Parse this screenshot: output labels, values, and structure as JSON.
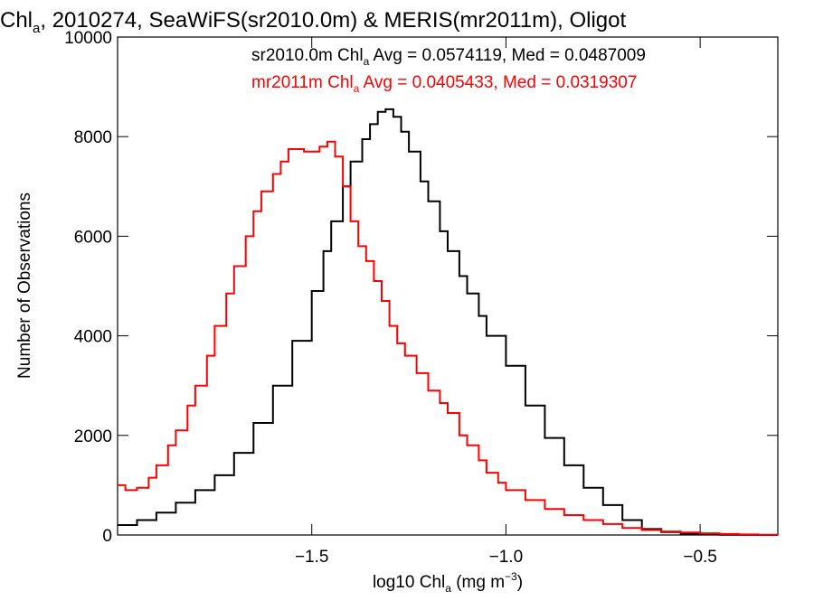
{
  "chart_data": {
    "type": "line",
    "title": "Chl",
    "title_sub": "a",
    "title_rest": ", 2010274, SeaWiFS(sr2010.0m) & MERIS(mr2011m), Oligot",
    "xlabel_pre": "log10 Chl",
    "xlabel_sub": "a",
    "xlabel_mid": " (mg m",
    "xlabel_sup": "−3",
    "xlabel_post": ")",
    "ylabel": "Number of Observations",
    "xlim": [
      -2.0,
      -0.3
    ],
    "ylim": [
      0,
      10000
    ],
    "x_ticks": [
      {
        "value": -1.5,
        "label": "−1.5"
      },
      {
        "value": -1.0,
        "label": "−1.0"
      },
      {
        "value": -0.5,
        "label": "−0.5"
      }
    ],
    "y_ticks": [
      {
        "value": 0,
        "label": "0"
      },
      {
        "value": 2000,
        "label": "2000"
      },
      {
        "value": 4000,
        "label": "4000"
      },
      {
        "value": 6000,
        "label": "6000"
      },
      {
        "value": 8000,
        "label": "8000"
      },
      {
        "value": 10000,
        "label": "10000"
      }
    ],
    "grid": false,
    "legend_position": "top-right",
    "series": [
      {
        "name": "sr2010.0m",
        "color": "#000000",
        "annotation": {
          "pre": "sr2010.0m Chl",
          "sub": "a",
          "post": " Avg = 0.0574119, Med = 0.0487009"
        },
        "points": [
          [
            -2.0,
            200
          ],
          [
            -1.95,
            300
          ],
          [
            -1.9,
            450
          ],
          [
            -1.85,
            650
          ],
          [
            -1.8,
            900
          ],
          [
            -1.75,
            1200
          ],
          [
            -1.7,
            1650
          ],
          [
            -1.65,
            2250
          ],
          [
            -1.6,
            3000
          ],
          [
            -1.55,
            3900
          ],
          [
            -1.5,
            4900
          ],
          [
            -1.47,
            5700
          ],
          [
            -1.45,
            6300
          ],
          [
            -1.42,
            7000
          ],
          [
            -1.4,
            7500
          ],
          [
            -1.37,
            7950
          ],
          [
            -1.35,
            8250
          ],
          [
            -1.33,
            8500
          ],
          [
            -1.31,
            8550
          ],
          [
            -1.29,
            8400
          ],
          [
            -1.27,
            8100
          ],
          [
            -1.25,
            7700
          ],
          [
            -1.22,
            7100
          ],
          [
            -1.2,
            6700
          ],
          [
            -1.17,
            6100
          ],
          [
            -1.15,
            5700
          ],
          [
            -1.12,
            5200
          ],
          [
            -1.1,
            4850
          ],
          [
            -1.07,
            4400
          ],
          [
            -1.05,
            4000
          ],
          [
            -1.0,
            3400
          ],
          [
            -0.95,
            2600
          ],
          [
            -0.9,
            1950
          ],
          [
            -0.85,
            1400
          ],
          [
            -0.8,
            950
          ],
          [
            -0.75,
            600
          ],
          [
            -0.7,
            300
          ],
          [
            -0.65,
            120
          ],
          [
            -0.6,
            60
          ],
          [
            -0.55,
            20
          ],
          [
            -0.5,
            10
          ],
          [
            -0.45,
            3
          ],
          [
            -0.4,
            1
          ],
          [
            -0.35,
            0
          ],
          [
            -0.3,
            0
          ]
        ]
      },
      {
        "name": "mr2011m",
        "color": "#ff0000",
        "annotation": {
          "pre": "mr2011m Chl",
          "sub": "a",
          "post": " Avg = 0.0405433, Med = 0.0319307"
        },
        "points": [
          [
            -2.0,
            1000
          ],
          [
            -1.98,
            900
          ],
          [
            -1.95,
            950
          ],
          [
            -1.92,
            1150
          ],
          [
            -1.9,
            1400
          ],
          [
            -1.87,
            1800
          ],
          [
            -1.85,
            2100
          ],
          [
            -1.82,
            2600
          ],
          [
            -1.8,
            3000
          ],
          [
            -1.77,
            3600
          ],
          [
            -1.75,
            4200
          ],
          [
            -1.72,
            4850
          ],
          [
            -1.7,
            5400
          ],
          [
            -1.67,
            6000
          ],
          [
            -1.65,
            6500
          ],
          [
            -1.63,
            6900
          ],
          [
            -1.6,
            7250
          ],
          [
            -1.58,
            7500
          ],
          [
            -1.56,
            7750
          ],
          [
            -1.54,
            7750
          ],
          [
            -1.52,
            7700
          ],
          [
            -1.5,
            7700
          ],
          [
            -1.48,
            7800
          ],
          [
            -1.46,
            7900
          ],
          [
            -1.44,
            7600
          ],
          [
            -1.42,
            7000
          ],
          [
            -1.4,
            6300
          ],
          [
            -1.38,
            5800
          ],
          [
            -1.36,
            5500
          ],
          [
            -1.34,
            5100
          ],
          [
            -1.32,
            4700
          ],
          [
            -1.3,
            4200
          ],
          [
            -1.28,
            3850
          ],
          [
            -1.26,
            3600
          ],
          [
            -1.23,
            3250
          ],
          [
            -1.2,
            2900
          ],
          [
            -1.17,
            2650
          ],
          [
            -1.15,
            2450
          ],
          [
            -1.12,
            2000
          ],
          [
            -1.1,
            1800
          ],
          [
            -1.07,
            1500
          ],
          [
            -1.05,
            1250
          ],
          [
            -1.02,
            1050
          ],
          [
            -1.0,
            900
          ],
          [
            -0.95,
            700
          ],
          [
            -0.9,
            520
          ],
          [
            -0.85,
            400
          ],
          [
            -0.8,
            300
          ],
          [
            -0.75,
            220
          ],
          [
            -0.7,
            140
          ],
          [
            -0.65,
            100
          ],
          [
            -0.6,
            70
          ],
          [
            -0.55,
            50
          ],
          [
            -0.5,
            35
          ],
          [
            -0.45,
            20
          ],
          [
            -0.4,
            10
          ],
          [
            -0.35,
            5
          ],
          [
            -0.3,
            3
          ]
        ]
      }
    ]
  }
}
